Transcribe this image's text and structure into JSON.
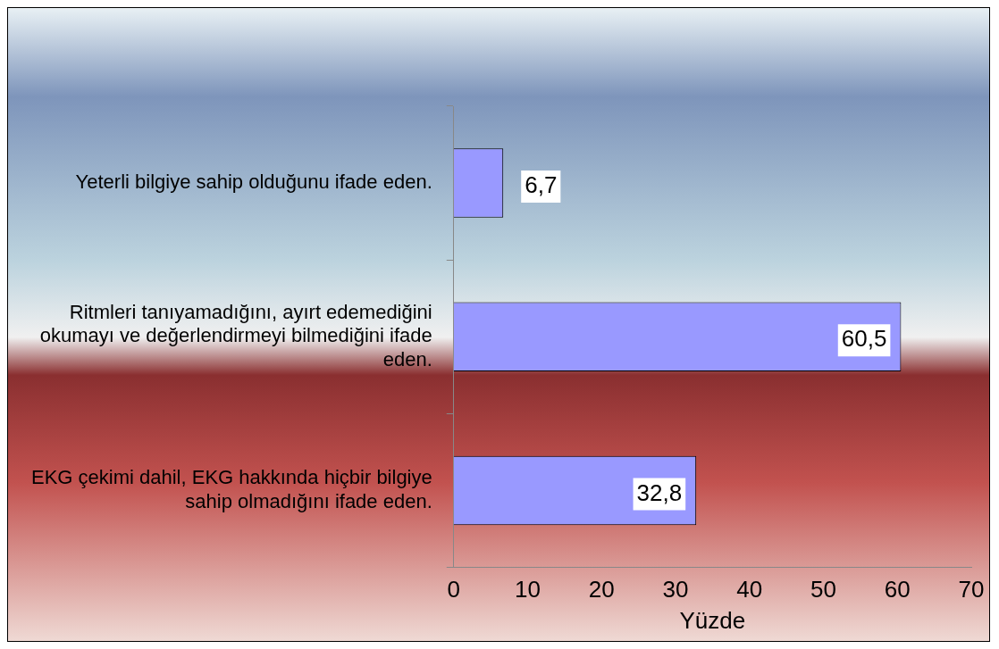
{
  "chart_data": {
    "type": "bar",
    "orientation": "horizontal",
    "xlabel": "Yüzde",
    "categories": [
      "Yeterli bilgiye sahip olduğunu ifade eden.",
      "Ritmleri tanıyamadığını, ayırt edemediğini okumayı ve değerlendirmeyi bilmediğini ifade eden.",
      "EKG çekimi dahil, EKG hakkında hiçbir bilgiye sahip olmadığını ifade eden."
    ],
    "values": [
      6.7,
      60.5,
      32.8
    ],
    "value_labels": [
      "6,7",
      "60,5",
      "32,8"
    ],
    "color": "#9999ff",
    "xlim": [
      0,
      70
    ],
    "xticks": [
      0,
      10,
      20,
      30,
      40,
      50,
      60,
      70
    ],
    "grid": false,
    "legend": false
  }
}
